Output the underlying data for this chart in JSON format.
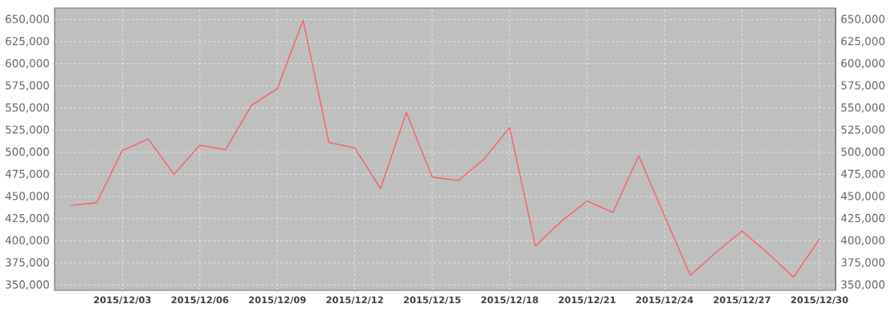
{
  "chart_data": {
    "type": "line",
    "x": [
      "2015-12-01",
      "2015-12-02",
      "2015-12-03",
      "2015-12-04",
      "2015-12-05",
      "2015-12-06",
      "2015-12-07",
      "2015-12-08",
      "2015-12-09",
      "2015-12-10",
      "2015-12-11",
      "2015-12-12",
      "2015-12-13",
      "2015-12-14",
      "2015-12-15",
      "2015-12-16",
      "2015-12-17",
      "2015-12-18",
      "2015-12-19",
      "2015-12-20",
      "2015-12-21",
      "2015-12-22",
      "2015-12-23",
      "2015-12-24",
      "2015-12-25",
      "2015-12-26",
      "2015-12-27",
      "2015-12-28",
      "2015-12-29",
      "2015-12-30"
    ],
    "series": [
      {
        "color": "#ff5a5a",
        "values": [
          440000,
          443000,
          502000,
          515000,
          475000,
          508000,
          503000,
          553000,
          572000,
          649000,
          511000,
          505000,
          459000,
          545000,
          472000,
          468000,
          492000,
          528000,
          394000,
          422000,
          445000,
          432000,
          496000,
          428000,
          361000,
          387000,
          411000,
          386000,
          359000,
          402000
        ]
      }
    ],
    "xlim": [
      "2015-11-30T09:00",
      "2015-12-30T15:00"
    ],
    "xticks": [
      {
        "value": "2015-12-03",
        "label": "2015/12/03"
      },
      {
        "value": "2015-12-06",
        "label": "2015/12/06"
      },
      {
        "value": "2015-12-09",
        "label": "2015/12/09"
      },
      {
        "value": "2015-12-12",
        "label": "2015/12/12"
      },
      {
        "value": "2015-12-15",
        "label": "2015/12/15"
      },
      {
        "value": "2015-12-18",
        "label": "2015/12/18"
      },
      {
        "value": "2015-12-21",
        "label": "2015/12/21"
      },
      {
        "value": "2015-12-24",
        "label": "2015/12/24"
      },
      {
        "value": "2015-12-27",
        "label": "2015/12/27"
      },
      {
        "value": "2015-12-30",
        "label": "2015/12/30"
      }
    ],
    "ylim": [
      344000,
      663000
    ],
    "yticks": [
      {
        "value": 350000,
        "label": "350,000"
      },
      {
        "value": 375000,
        "label": "375,000"
      },
      {
        "value": 400000,
        "label": "400,000"
      },
      {
        "value": 425000,
        "label": "425,000"
      },
      {
        "value": 450000,
        "label": "450,000"
      },
      {
        "value": 475000,
        "label": "475,000"
      },
      {
        "value": 500000,
        "label": "500,000"
      },
      {
        "value": 525000,
        "label": "525,000"
      },
      {
        "value": 550000,
        "label": "550,000"
      },
      {
        "value": 575000,
        "label": "575,000"
      },
      {
        "value": 600000,
        "label": "600,000"
      },
      {
        "value": 625000,
        "label": "625,000"
      },
      {
        "value": 650000,
        "label": "650,000"
      }
    ],
    "y2lim": [
      344000,
      663000
    ],
    "y2ticks": [
      {
        "value": 350000,
        "label": "350,000"
      },
      {
        "value": 375000,
        "label": "375,000"
      },
      {
        "value": 400000,
        "label": "400,000"
      },
      {
        "value": 425000,
        "label": "425,000"
      },
      {
        "value": 450000,
        "label": "450,000"
      },
      {
        "value": 475000,
        "label": "475,000"
      },
      {
        "value": 500000,
        "label": "500,000"
      },
      {
        "value": 525000,
        "label": "525,000"
      },
      {
        "value": 550000,
        "label": "550,000"
      },
      {
        "value": 575000,
        "label": "575,000"
      },
      {
        "value": 600000,
        "label": "600,000"
      },
      {
        "value": 625000,
        "label": "625,000"
      },
      {
        "value": 650000,
        "label": "650,000"
      }
    ],
    "grid": true,
    "marker": "none",
    "line_style": "solid"
  }
}
